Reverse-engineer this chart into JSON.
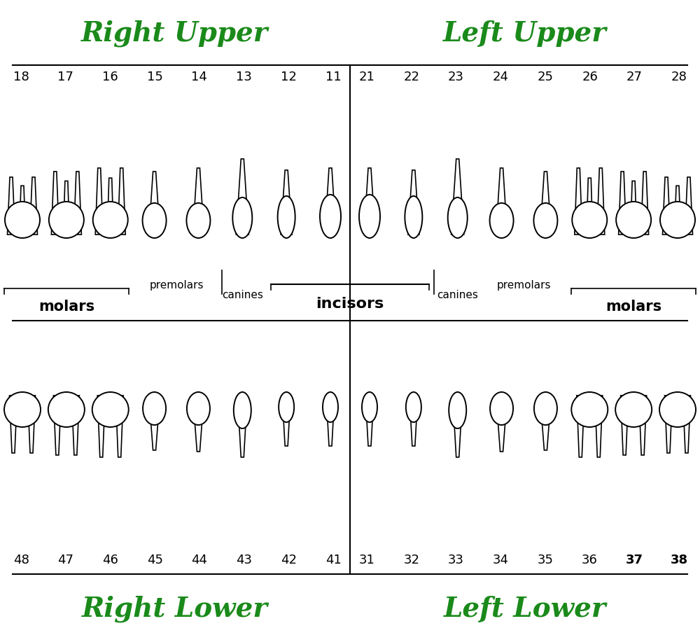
{
  "bg_color": "#ffffff",
  "title_right_upper": "Right Upper",
  "title_left_upper": "Left Upper",
  "title_right_lower": "Right Lower",
  "title_left_lower": "Left Lower",
  "title_color": "#1a8a1a",
  "title_fontsize": 28,
  "numbers_upper_right": [
    "18",
    "17",
    "16",
    "15",
    "14",
    "13",
    "12",
    "11"
  ],
  "numbers_upper_left": [
    "21",
    "22",
    "23",
    "24",
    "25",
    "26",
    "27",
    "28"
  ],
  "numbers_lower_right": [
    "48",
    "47",
    "46",
    "45",
    "44",
    "43",
    "42",
    "41"
  ],
  "numbers_lower_left": [
    "31",
    "32",
    "33",
    "34",
    "35",
    "36",
    "37",
    "38"
  ],
  "bold_lower_left": [
    "37",
    "38"
  ],
  "label_molars": "molars",
  "label_premolars": "premolars",
  "label_canines": "canines",
  "label_incisors": "incisors",
  "number_fontsize": 13,
  "label_fontsize": 11,
  "incisors_fontsize": 16,
  "molars_fontsize": 15
}
